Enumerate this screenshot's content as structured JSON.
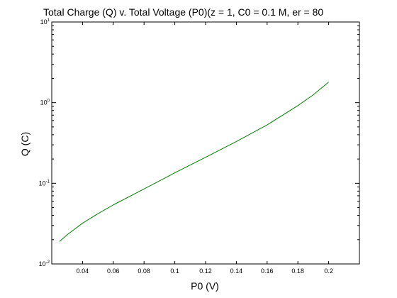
{
  "chart_data": {
    "type": "line",
    "title": "Total Charge (Q) v. Total Voltage (P0)(z = 1, C0 = 0.1 M, er = 80",
    "xlabel": "P0 (V)",
    "ylabel": "Q (C)",
    "xlim": [
      0.02,
      0.22
    ],
    "ylim": [
      0.01,
      10
    ],
    "yscale": "log",
    "grid": false,
    "x_ticks": [
      0.04,
      0.06,
      0.08,
      0.1,
      0.12,
      0.14,
      0.16,
      0.18,
      0.2
    ],
    "x_tick_labels": [
      "0.04",
      "0.06",
      "0.08",
      "0.1",
      "0.12",
      "0.14",
      "0.16",
      "0.18",
      "0.2"
    ],
    "y_ticks": [
      {
        "value": 0.01,
        "base": "10",
        "exp": "-2"
      },
      {
        "value": 0.1,
        "base": "10",
        "exp": "-1"
      },
      {
        "value": 1,
        "base": "10",
        "exp": "0"
      },
      {
        "value": 10,
        "base": "10",
        "exp": "1"
      }
    ],
    "series": [
      {
        "color": "#008000",
        "x": [
          0.025,
          0.03,
          0.04,
          0.05,
          0.06,
          0.08,
          0.1,
          0.12,
          0.14,
          0.16,
          0.18,
          0.19,
          0.2
        ],
        "y": [
          0.019,
          0.023,
          0.032,
          0.042,
          0.054,
          0.085,
          0.135,
          0.21,
          0.33,
          0.53,
          0.92,
          1.25,
          1.8
        ]
      }
    ]
  }
}
